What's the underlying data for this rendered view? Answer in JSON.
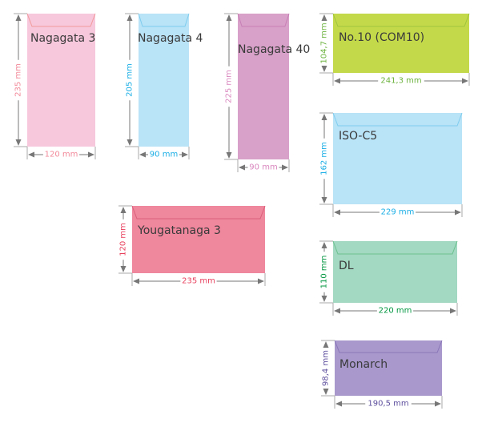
{
  "envelopes": [
    {
      "name": "Nagagata 3",
      "width_label": "120 mm",
      "height_label": "235 mm",
      "fill": "#f7c8dc",
      "flap": "#f29a9a",
      "label_color": "#f28a9a"
    },
    {
      "name": "Nagagata 4",
      "width_label": "90 mm",
      "height_label": "205 mm",
      "fill": "#b9e3f7",
      "flap": "#7fcdee",
      "label_color": "#1aaee5"
    },
    {
      "name": "Nagagata 40",
      "width_label": "90 mm",
      "height_label": "225 mm",
      "fill": "#d8a1c9",
      "flap": "#c77fb5",
      "label_color": "#da88bf"
    },
    {
      "name": "No.10 (COM10)",
      "width_label": "241,3 mm",
      "height_label": "104,7 mm",
      "fill": "#c4d94a",
      "flap": "#9fc53f",
      "label_color": "#6db33f"
    },
    {
      "name": "ISO-C5",
      "width_label": "229 mm",
      "height_label": "162 mm",
      "fill": "#b9e3f7",
      "flap": "#7fcdee",
      "label_color": "#1aaee5"
    },
    {
      "name": "Yougatanaga 3",
      "width_label": "235 mm",
      "height_label": "120 mm",
      "fill": "#ef879d",
      "flap": "#d9607a",
      "label_color": "#e8415e"
    },
    {
      "name": "DL",
      "width_label": "220 mm",
      "height_label": "110 mm",
      "fill": "#a3d8c2",
      "flap": "#6cc28f",
      "label_color": "#00963f"
    },
    {
      "name": "Monarch",
      "width_label": "190,5 mm",
      "height_label": "98,4 mm",
      "fill": "#a898cc",
      "flap": "#8a77b8",
      "label_color": "#5e4f9e"
    }
  ]
}
